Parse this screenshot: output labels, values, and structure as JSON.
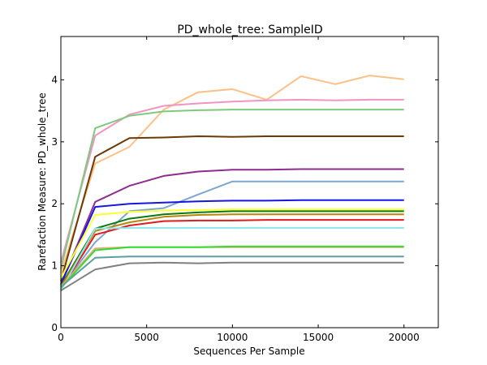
{
  "chart_data": {
    "type": "line",
    "title": "PD_whole_tree: SampleID",
    "xlabel": "Sequences Per Sample",
    "ylabel": "Rarefaction Measure: PD_whole_tree",
    "xlim": [
      0,
      22000
    ],
    "ylim": [
      0,
      4.7
    ],
    "xticks": [
      0,
      5000,
      10000,
      15000,
      20000
    ],
    "xtick_labels": [
      "0",
      "5000",
      "10000",
      "15000",
      "20000"
    ],
    "yticks": [
      0,
      1,
      2,
      3,
      4
    ],
    "ytick_labels": [
      "0",
      "1",
      "2",
      "3",
      "4"
    ],
    "grid": false,
    "legend": false,
    "series": [
      {
        "color": "#fdc086",
        "x": [
          0,
          2000,
          4000,
          6000,
          8000,
          10000,
          12000,
          14000,
          16000,
          18000,
          20000
        ],
        "y": [
          0.88,
          2.65,
          2.92,
          3.52,
          3.8,
          3.85,
          3.68,
          4.06,
          3.93,
          4.07,
          4.01
        ]
      },
      {
        "color": "#f293c4",
        "x": [
          0,
          2000,
          4000,
          6000,
          8000,
          10000,
          12000,
          14000,
          16000,
          18000,
          20000
        ],
        "y": [
          1.05,
          3.1,
          3.44,
          3.58,
          3.62,
          3.65,
          3.67,
          3.68,
          3.67,
          3.68,
          3.68
        ]
      },
      {
        "color": "#7fc97f",
        "x": [
          0,
          2000,
          4000,
          6000,
          8000,
          10000,
          12000,
          14000,
          16000,
          18000,
          20000
        ],
        "y": [
          0.95,
          3.22,
          3.42,
          3.49,
          3.51,
          3.52,
          3.52,
          3.52,
          3.52,
          3.52,
          3.52
        ]
      },
      {
        "color": "#6b3a07",
        "x": [
          0,
          2000,
          4000,
          6000,
          8000,
          10000,
          12000,
          14000,
          16000,
          18000,
          20000
        ],
        "y": [
          0.75,
          2.76,
          3.06,
          3.07,
          3.09,
          3.08,
          3.09,
          3.09,
          3.09,
          3.09,
          3.09
        ]
      },
      {
        "color": "#8e2b8f",
        "x": [
          0,
          2000,
          4000,
          6000,
          8000,
          10000,
          12000,
          14000,
          16000,
          18000,
          20000
        ],
        "y": [
          0.7,
          2.03,
          2.29,
          2.45,
          2.52,
          2.55,
          2.55,
          2.56,
          2.56,
          2.56,
          2.56
        ]
      },
      {
        "color": "#7ba7d2",
        "x": [
          0,
          2000,
          4000,
          6000,
          8000,
          10000,
          12000,
          14000,
          16000,
          18000,
          20000
        ],
        "y": [
          0.65,
          1.38,
          1.88,
          1.93,
          2.15,
          2.36,
          2.36,
          2.36,
          2.36,
          2.36,
          2.36
        ]
      },
      {
        "color": "#1515e6",
        "x": [
          0,
          2000,
          4000,
          6000,
          8000,
          10000,
          12000,
          14000,
          16000,
          18000,
          20000
        ],
        "y": [
          0.7,
          1.95,
          2.0,
          2.02,
          2.04,
          2.05,
          2.05,
          2.06,
          2.06,
          2.06,
          2.06
        ]
      },
      {
        "color": "#ffff33",
        "x": [
          0,
          2000,
          4000,
          6000,
          8000,
          10000,
          12000,
          14000,
          16000,
          18000,
          20000
        ],
        "y": [
          0.8,
          1.82,
          1.87,
          1.89,
          1.9,
          1.91,
          1.91,
          1.91,
          1.91,
          1.91,
          1.91
        ]
      },
      {
        "color": "#0a7a0a",
        "x": [
          0,
          2000,
          4000,
          6000,
          8000,
          10000,
          12000,
          14000,
          16000,
          18000,
          20000
        ],
        "y": [
          0.68,
          1.6,
          1.76,
          1.83,
          1.86,
          1.88,
          1.88,
          1.88,
          1.88,
          1.88,
          1.88
        ]
      },
      {
        "color": "#b8860b",
        "x": [
          0,
          2000,
          4000,
          6000,
          8000,
          10000,
          12000,
          14000,
          16000,
          18000,
          20000
        ],
        "y": [
          0.66,
          1.56,
          1.7,
          1.79,
          1.82,
          1.83,
          1.83,
          1.83,
          1.83,
          1.83,
          1.83
        ]
      },
      {
        "color": "#e41a1c",
        "x": [
          0,
          2000,
          4000,
          6000,
          8000,
          10000,
          12000,
          14000,
          16000,
          18000,
          20000
        ],
        "y": [
          0.62,
          1.5,
          1.65,
          1.72,
          1.73,
          1.73,
          1.74,
          1.74,
          1.74,
          1.74,
          1.74
        ]
      },
      {
        "color": "#8ee8ee",
        "x": [
          0,
          2000,
          4000,
          6000,
          8000,
          10000,
          12000,
          14000,
          16000,
          18000,
          20000
        ],
        "y": [
          0.6,
          1.6,
          1.61,
          1.61,
          1.61,
          1.61,
          1.61,
          1.61,
          1.61,
          1.61,
          1.61
        ]
      },
      {
        "color": "#f4a582",
        "x": [
          0,
          2000,
          4000,
          6000,
          8000,
          10000,
          12000,
          14000,
          16000,
          18000,
          20000
        ],
        "y": [
          0.66,
          1.28,
          1.3,
          1.3,
          1.3,
          1.3,
          1.3,
          1.3,
          1.3,
          1.3,
          1.3
        ]
      },
      {
        "color": "#2fdf2f",
        "x": [
          0,
          2000,
          4000,
          6000,
          8000,
          10000,
          12000,
          14000,
          16000,
          18000,
          20000
        ],
        "y": [
          0.64,
          1.25,
          1.3,
          1.3,
          1.3,
          1.31,
          1.31,
          1.31,
          1.31,
          1.31,
          1.31
        ]
      },
      {
        "color": "#5f9ea0",
        "x": [
          0,
          2000,
          4000,
          6000,
          8000,
          10000,
          12000,
          14000,
          16000,
          18000,
          20000
        ],
        "y": [
          0.66,
          1.13,
          1.15,
          1.15,
          1.15,
          1.15,
          1.15,
          1.15,
          1.15,
          1.15,
          1.15
        ]
      },
      {
        "color": "#808080",
        "x": [
          0,
          2000,
          4000,
          6000,
          8000,
          10000,
          12000,
          14000,
          16000,
          18000,
          20000
        ],
        "y": [
          0.6,
          0.94,
          1.04,
          1.05,
          1.04,
          1.05,
          1.05,
          1.05,
          1.05,
          1.05,
          1.05
        ]
      }
    ]
  }
}
